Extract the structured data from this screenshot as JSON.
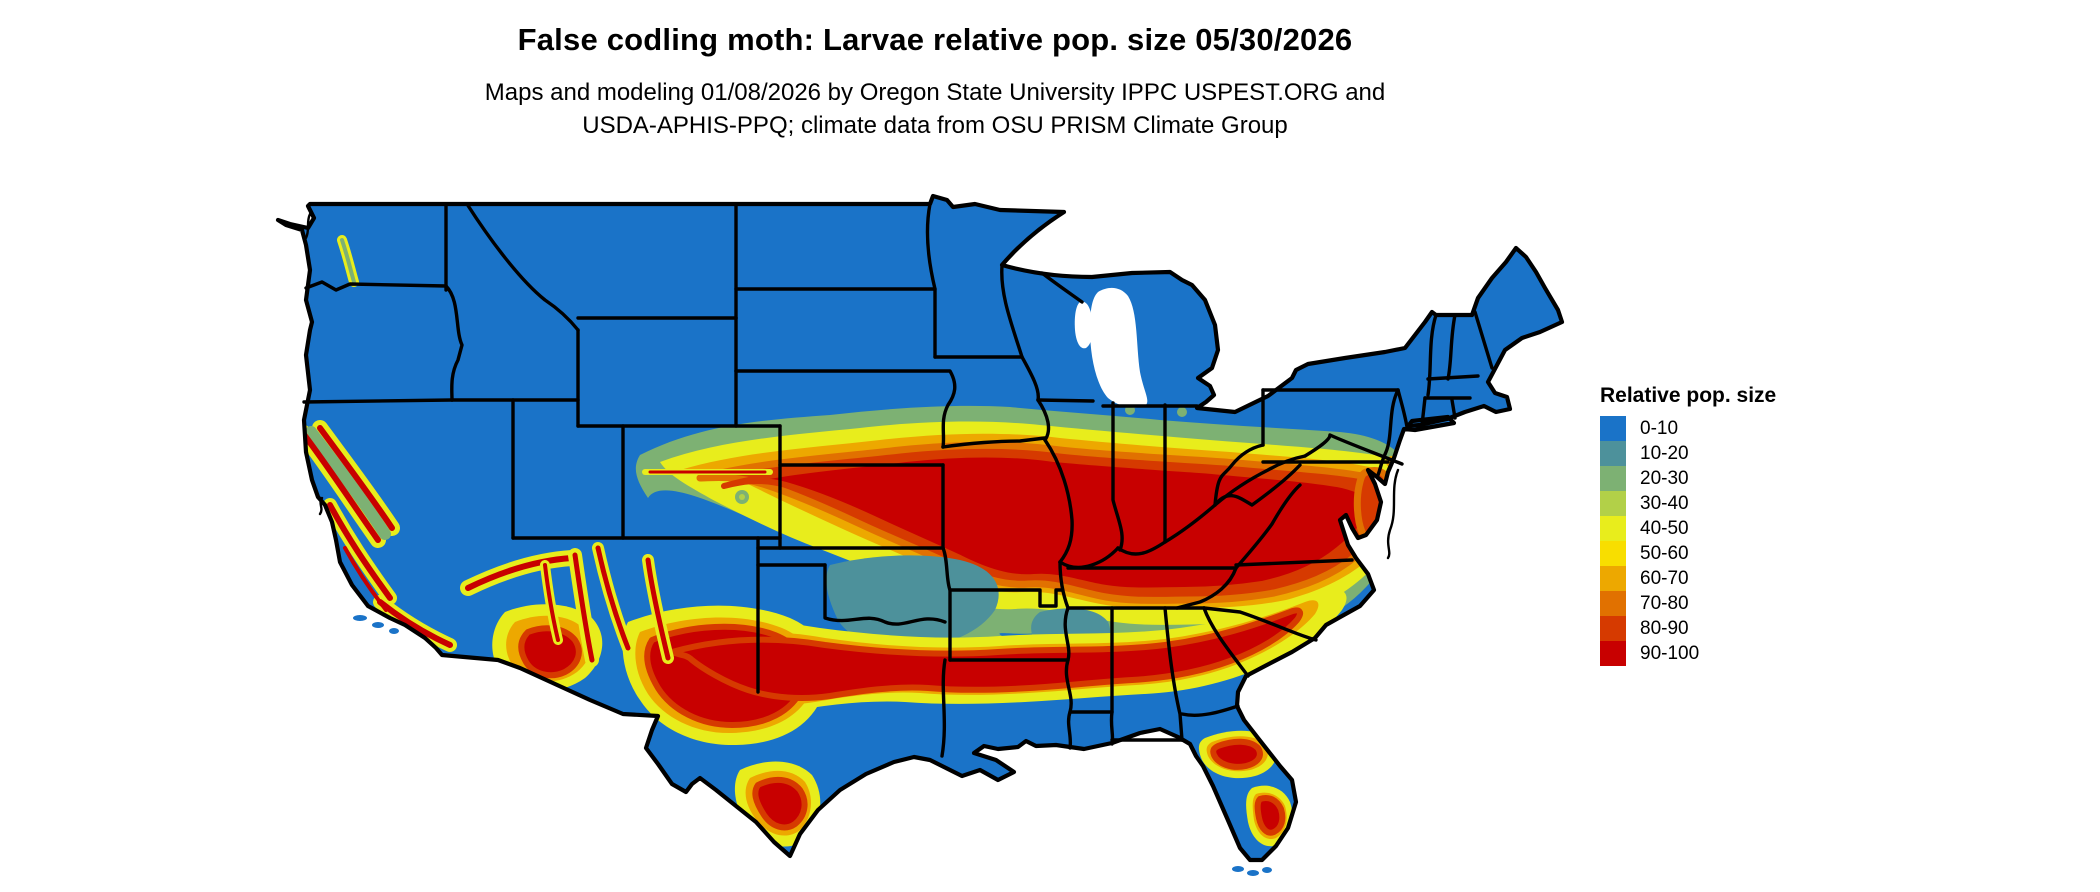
{
  "header": {
    "title": "False codling moth: Larvae relative pop. size 05/30/2026",
    "subtitle_line1": "Maps and modeling 01/08/2026 by Oregon State University IPPC USPEST.ORG and",
    "subtitle_line2": "USDA-APHIS-PPQ; climate data from OSU PRISM Climate Group"
  },
  "legend": {
    "title": "Relative pop. size",
    "items": [
      {
        "label": "0-10",
        "color": "#1a73c8"
      },
      {
        "label": "10-20",
        "color": "#4d919b"
      },
      {
        "label": "20-30",
        "color": "#7db173"
      },
      {
        "label": "30-40",
        "color": "#b2d048"
      },
      {
        "label": "40-50",
        "color": "#e8ed1c"
      },
      {
        "label": "50-60",
        "color": "#f8de00"
      },
      {
        "label": "60-70",
        "color": "#eda800"
      },
      {
        "label": "70-80",
        "color": "#e17100"
      },
      {
        "label": "80-90",
        "color": "#d63a00"
      },
      {
        "label": "90-100",
        "color": "#c80000"
      }
    ]
  },
  "map": {
    "type": "choropleth-raster",
    "region": "contiguous United States",
    "land_base_value": "0-10",
    "water_color": "#ffffff",
    "state_border_color": "#000000",
    "hot_zones": [
      "central plains through Ohio valley to Virginia (Kansas, Missouri, Illinois, Indiana, Kentucky, Tennessee, West Virginia, Virginia)",
      "southern band central Texas through Louisiana, Mississippi, Alabama, Georgia to South Carolina coast",
      "California Sierra Nevada and coast ranges",
      "Arizona and New Mexico mountain ranges",
      "south Texas and central Florida pockets",
      "Delmarva / Chesapeake area"
    ]
  }
}
